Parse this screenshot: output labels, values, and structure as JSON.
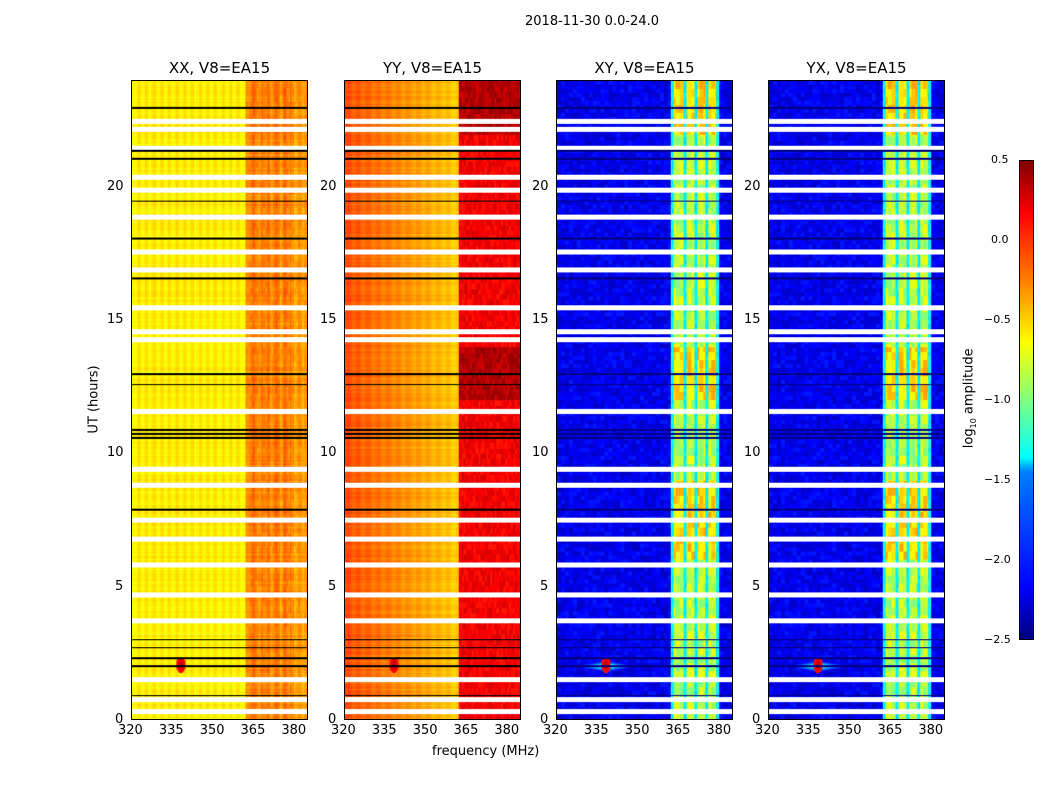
{
  "chart_data": {
    "type": "heatmap",
    "suptitle": "2018-11-30 0.0-24.0",
    "xlabel": "frequency (MHz)",
    "ylabel": "UT (hours)",
    "xlim": [
      320,
      385
    ],
    "ylim": [
      0,
      24
    ],
    "xticks": [
      "320",
      "335",
      "350",
      "365",
      "380"
    ],
    "yticks": [
      "0",
      "5",
      "10",
      "15",
      "20"
    ],
    "panels": [
      {
        "title": "XX, V8=EA15",
        "kind": "auto_x"
      },
      {
        "title": "YY, V8=EA15",
        "kind": "auto_y"
      },
      {
        "title": "XY, V8=EA15",
        "kind": "cross"
      },
      {
        "title": "YX, V8=EA15",
        "kind": "cross"
      }
    ],
    "flagged_white_hours": [
      0.3,
      0.75,
      1.5,
      3.7,
      4.7,
      5.8,
      6.8,
      7.5,
      8.8,
      9.4,
      11.6,
      14.3,
      14.6,
      15.5,
      16.9,
      17.6,
      18.9,
      19.9,
      20.4,
      21.5,
      22.2,
      22.5
    ],
    "zero_black_hours": [
      0.9,
      2.0,
      2.3,
      2.7,
      3.0,
      7.9,
      10.6,
      10.75,
      10.9,
      12.6,
      13.0,
      16.6,
      18.1,
      19.5,
      21.1,
      21.4,
      23.0
    ],
    "rfi_bands_mhz": [
      [
        363,
        367
      ],
      [
        368,
        371
      ],
      [
        372,
        375
      ],
      [
        376,
        379
      ]
    ],
    "colorbar": {
      "label": "log10 amplitude",
      "label_main": "log",
      "label_sub": "10",
      "label_rest": " amplitude",
      "vmin": -2.5,
      "vmax": 0.5,
      "ticks": [
        "0.5",
        "0.0",
        "−0.5",
        "−1.0",
        "−1.5",
        "−2.0",
        "−2.5"
      ]
    }
  }
}
